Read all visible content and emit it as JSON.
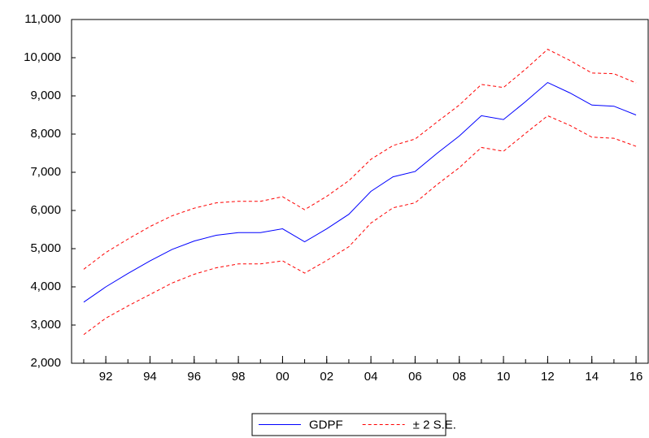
{
  "chart_data": {
    "type": "line",
    "x": [
      1991,
      1992,
      1993,
      1994,
      1995,
      1996,
      1997,
      1998,
      1999,
      2000,
      2001,
      2002,
      2003,
      2004,
      2005,
      2006,
      2007,
      2008,
      2009,
      2010,
      2011,
      2012,
      2013,
      2014,
      2015,
      2016
    ],
    "series": [
      {
        "name": "GDPF",
        "color": "#0000ff",
        "dashed": false,
        "values": [
          3600,
          4000,
          4350,
          4680,
          4980,
          5200,
          5350,
          5420,
          5420,
          5520,
          5180,
          5520,
          5900,
          6500,
          6880,
          7020,
          7500,
          7950,
          8480,
          8380,
          8850,
          9350,
          9080,
          8760,
          8730,
          8500
        ]
      },
      {
        "name": "± 2 S.E.",
        "color": "#ff0000",
        "dashed": true,
        "upper": [
          4460,
          4900,
          5250,
          5580,
          5860,
          6060,
          6200,
          6240,
          6240,
          6360,
          6020,
          6370,
          6780,
          7340,
          7700,
          7870,
          8320,
          8760,
          9300,
          9220,
          9700,
          10220,
          9930,
          9600,
          9580,
          9340
        ],
        "lower": [
          2750,
          3180,
          3500,
          3800,
          4100,
          4330,
          4500,
          4600,
          4600,
          4680,
          4360,
          4690,
          5050,
          5670,
          6070,
          6200,
          6680,
          7120,
          7650,
          7550,
          8020,
          8480,
          8230,
          7920,
          7890,
          7680
        ]
      }
    ],
    "xlim": [
      1990.45,
      2016.55
    ],
    "xticks": [
      {
        "value": 1992,
        "label": "92"
      },
      {
        "value": 1994,
        "label": "94"
      },
      {
        "value": 1996,
        "label": "96"
      },
      {
        "value": 1998,
        "label": "98"
      },
      {
        "value": 2000,
        "label": "00"
      },
      {
        "value": 2002,
        "label": "02"
      },
      {
        "value": 2004,
        "label": "04"
      },
      {
        "value": 2006,
        "label": "06"
      },
      {
        "value": 2008,
        "label": "08"
      },
      {
        "value": 2010,
        "label": "10"
      },
      {
        "value": 2012,
        "label": "12"
      },
      {
        "value": 2014,
        "label": "14"
      },
      {
        "value": 2016,
        "label": "16"
      }
    ],
    "ylim": [
      2000,
      11000
    ],
    "yticks": [
      {
        "value": 2000,
        "label": "2,000"
      },
      {
        "value": 3000,
        "label": "3,000"
      },
      {
        "value": 4000,
        "label": "4,000"
      },
      {
        "value": 5000,
        "label": "5,000"
      },
      {
        "value": 6000,
        "label": "6,000"
      },
      {
        "value": 7000,
        "label": "7,000"
      },
      {
        "value": 8000,
        "label": "8,000"
      },
      {
        "value": 9000,
        "label": "9,000"
      },
      {
        "value": 10000,
        "label": "10,000"
      },
      {
        "value": 11000,
        "label": "11,000"
      }
    ],
    "grid": false,
    "legend": "bottom"
  }
}
